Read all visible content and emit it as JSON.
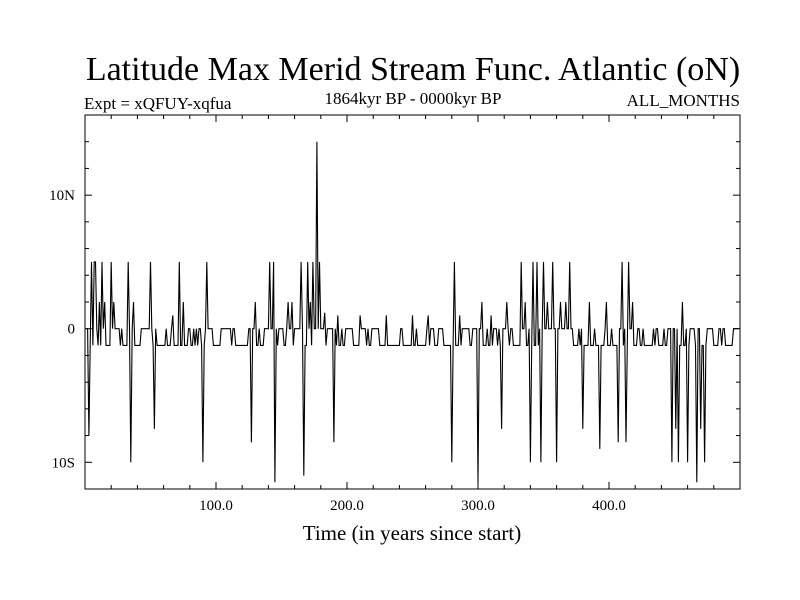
{
  "chart_data": {
    "type": "line",
    "title": "Latitude Max Merid Stream Func. Atlantic (oN)",
    "subtitle_left": "Expt = xQFUY-xqfua",
    "subtitle_center": "1864kyr BP - 0000kyr BP",
    "subtitle_right": "ALL_MONTHS",
    "xlabel": "Time (in years since start)",
    "ylabel": "",
    "xlim": [
      0,
      500
    ],
    "ylim": [
      -12,
      16
    ],
    "x_ticks": [
      {
        "value": 100,
        "label": "100.0"
      },
      {
        "value": 200,
        "label": "200.0"
      },
      {
        "value": 300,
        "label": "300.0"
      },
      {
        "value": 400,
        "label": "400.0"
      }
    ],
    "y_ticks": [
      {
        "value": 10,
        "label": "10N"
      },
      {
        "value": 0,
        "label": "0"
      },
      {
        "value": -10,
        "label": "10S"
      }
    ],
    "grid": false,
    "series": [
      {
        "name": "Latitude Max",
        "x_start": 1,
        "x_step": 1,
        "baseline": [
          0,
          -1.25
        ],
        "spikes": [
          {
            "x": 3,
            "y": -8
          },
          {
            "x": 5,
            "y": 5
          },
          {
            "x": 7,
            "y": 5
          },
          {
            "x": 8,
            "y": 5
          },
          {
            "x": 11,
            "y": 2
          },
          {
            "x": 13,
            "y": 5
          },
          {
            "x": 15,
            "y": 2
          },
          {
            "x": 20,
            "y": 5
          },
          {
            "x": 22,
            "y": 2
          },
          {
            "x": 33,
            "y": 5
          },
          {
            "x": 35,
            "y": -10
          },
          {
            "x": 37,
            "y": 2
          },
          {
            "x": 50,
            "y": 5
          },
          {
            "x": 53,
            "y": -7.5
          },
          {
            "x": 67,
            "y": 1
          },
          {
            "x": 72,
            "y": 5
          },
          {
            "x": 75,
            "y": 2
          },
          {
            "x": 90,
            "y": -10
          },
          {
            "x": 93,
            "y": 5
          },
          {
            "x": 127,
            "y": -8.5
          },
          {
            "x": 130,
            "y": 2
          },
          {
            "x": 141,
            "y": 5
          },
          {
            "x": 144,
            "y": 5
          },
          {
            "x": 145,
            "y": -11.5
          },
          {
            "x": 155,
            "y": 2
          },
          {
            "x": 158,
            "y": 2
          },
          {
            "x": 165,
            "y": 5
          },
          {
            "x": 167,
            "y": -11
          },
          {
            "x": 170,
            "y": 5
          },
          {
            "x": 172,
            "y": 2
          },
          {
            "x": 174,
            "y": 5
          },
          {
            "x": 177,
            "y": 14
          },
          {
            "x": 179,
            "y": 5
          },
          {
            "x": 183,
            "y": 1.2
          },
          {
            "x": 190,
            "y": -8.5
          },
          {
            "x": 193,
            "y": 1
          },
          {
            "x": 210,
            "y": 1
          },
          {
            "x": 230,
            "y": 1
          },
          {
            "x": 250,
            "y": 1
          },
          {
            "x": 262,
            "y": 1
          },
          {
            "x": 280,
            "y": -10
          },
          {
            "x": 282,
            "y": 5
          },
          {
            "x": 286,
            "y": 1
          },
          {
            "x": 300,
            "y": -11.5
          },
          {
            "x": 303,
            "y": 2
          },
          {
            "x": 310,
            "y": 1
          },
          {
            "x": 318,
            "y": -7.5
          },
          {
            "x": 322,
            "y": 2
          },
          {
            "x": 333,
            "y": 5
          },
          {
            "x": 336,
            "y": 2
          },
          {
            "x": 340,
            "y": -10
          },
          {
            "x": 342,
            "y": 5
          },
          {
            "x": 345,
            "y": 5
          },
          {
            "x": 348,
            "y": -10
          },
          {
            "x": 350,
            "y": 5
          },
          {
            "x": 353,
            "y": 2
          },
          {
            "x": 357,
            "y": 5
          },
          {
            "x": 360,
            "y": -10
          },
          {
            "x": 363,
            "y": 2
          },
          {
            "x": 367,
            "y": 2
          },
          {
            "x": 370,
            "y": 5
          },
          {
            "x": 380,
            "y": -7.5
          },
          {
            "x": 385,
            "y": 2
          },
          {
            "x": 393,
            "y": -9
          },
          {
            "x": 398,
            "y": 2
          },
          {
            "x": 407,
            "y": -8.5
          },
          {
            "x": 410,
            "y": 5
          },
          {
            "x": 413,
            "y": -8.5
          },
          {
            "x": 415,
            "y": 5
          },
          {
            "x": 418,
            "y": 2
          },
          {
            "x": 448,
            "y": -10
          },
          {
            "x": 451,
            "y": -7.5
          },
          {
            "x": 453,
            "y": -10
          },
          {
            "x": 456,
            "y": 2
          },
          {
            "x": 460,
            "y": -10
          },
          {
            "x": 467,
            "y": -11.5
          },
          {
            "x": 470,
            "y": -7.5
          },
          {
            "x": 473,
            "y": -10
          }
        ]
      }
    ]
  }
}
